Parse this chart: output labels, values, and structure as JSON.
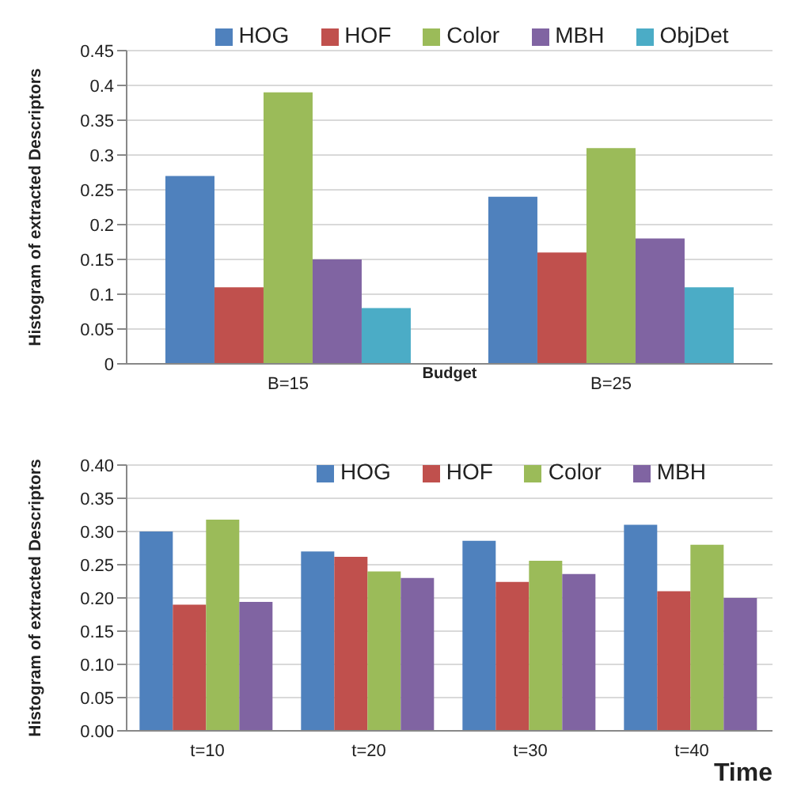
{
  "chart_data": [
    {
      "type": "bar",
      "xlabel": "Budget",
      "ylabel": "Histogram of extracted Descriptors",
      "categories": [
        "B=15",
        "B=25"
      ],
      "series": [
        {
          "name": "HOG",
          "color": "#4f81bd",
          "values": [
            0.27,
            0.24
          ]
        },
        {
          "name": "HOF",
          "color": "#c0504d",
          "values": [
            0.11,
            0.16
          ]
        },
        {
          "name": "Color",
          "color": "#9bbb59",
          "values": [
            0.39,
            0.31
          ]
        },
        {
          "name": "MBH",
          "color": "#8064a2",
          "values": [
            0.15,
            0.18
          ]
        },
        {
          "name": "ObjDet",
          "color": "#4bacc6",
          "values": [
            0.08,
            0.11
          ]
        }
      ],
      "ylim": [
        0,
        0.45
      ],
      "yticks": [
        0,
        0.05,
        0.1,
        0.15,
        0.2,
        0.25,
        0.3,
        0.35,
        0.4,
        0.45
      ],
      "grid": "y",
      "legend": "top"
    },
    {
      "type": "bar",
      "xlabel": "Time",
      "ylabel": "Histogram of extracted Descriptors",
      "categories": [
        "t=10",
        "t=20",
        "t=30",
        "t=40"
      ],
      "series": [
        {
          "name": "HOG",
          "color": "#4f81bd",
          "values": [
            0.3,
            0.27,
            0.286,
            0.31
          ]
        },
        {
          "name": "HOF",
          "color": "#c0504d",
          "values": [
            0.19,
            0.262,
            0.224,
            0.21
          ]
        },
        {
          "name": "Color",
          "color": "#9bbb59",
          "values": [
            0.318,
            0.24,
            0.256,
            0.28
          ]
        },
        {
          "name": "MBH",
          "color": "#8064a2",
          "values": [
            0.194,
            0.23,
            0.236,
            0.2
          ]
        }
      ],
      "ylim": [
        0,
        0.4
      ],
      "yticks": [
        {
          "value": 0,
          "label": "0.00"
        },
        {
          "value": 0.05,
          "label": "0.05"
        },
        {
          "value": 0.1,
          "label": "0.10"
        },
        {
          "value": 0.15,
          "label": "0.15"
        },
        {
          "value": 0.2,
          "label": "0.20"
        },
        {
          "value": 0.25,
          "label": "0.25"
        },
        {
          "value": 0.3,
          "label": "0.30"
        },
        {
          "value": 0.35,
          "label": "0.35"
        },
        {
          "value": 0.4,
          "label": "0.40"
        }
      ],
      "grid": "y",
      "legend": "top right"
    }
  ]
}
